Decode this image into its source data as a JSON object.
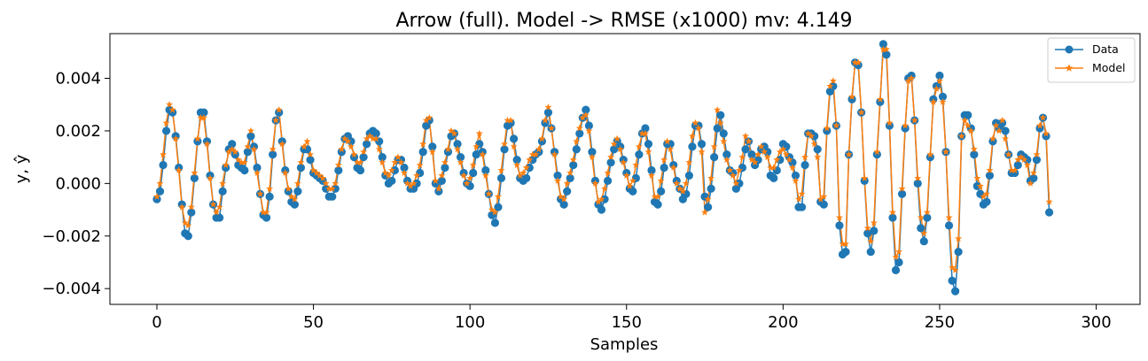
{
  "chart_data": {
    "type": "line",
    "title": "Arrow (full). Model -> RMSE (x1000) mv: 4.149",
    "xlabel": "Samples",
    "ylabel": "y, ŷ",
    "xlim": [
      -15,
      314
    ],
    "ylim": [
      -0.0046,
      0.0057
    ],
    "xticks": [
      0,
      50,
      100,
      150,
      200,
      250,
      300
    ],
    "xtick_labels": [
      "0",
      "50",
      "100",
      "150",
      "200",
      "250",
      "300"
    ],
    "yticks": [
      -0.004,
      -0.002,
      0.0,
      0.002,
      0.004
    ],
    "ytick_labels": [
      "−0.004",
      "−0.002",
      "0.000",
      "0.002",
      "0.004"
    ],
    "grid": false,
    "legend_position": "top-right",
    "series": [
      {
        "name": "Data",
        "color": "#1f77b4",
        "marker": "circle",
        "values": [
          -0.0006,
          -0.0003,
          0.0007,
          0.002,
          0.0028,
          0.0027,
          0.0018,
          0.0006,
          -0.0008,
          -0.0019,
          -0.002,
          -0.0011,
          0.0002,
          0.0016,
          0.0027,
          0.0027,
          0.0016,
          0.0003,
          -0.0008,
          -0.0013,
          -0.0013,
          -0.0003,
          0.0006,
          0.0013,
          0.0015,
          0.0011,
          0.0007,
          0.0006,
          0.0005,
          0.0012,
          0.0018,
          0.0014,
          0.0006,
          -0.0004,
          -0.0012,
          -0.0013,
          -0.0005,
          0.0011,
          0.0024,
          0.0027,
          0.0016,
          0.0005,
          -0.0003,
          -0.0007,
          -0.0008,
          -0.0003,
          0.0006,
          0.0013,
          0.0013,
          0.0009,
          0.0004,
          0.0003,
          0.0002,
          0.0001,
          -0.0002,
          -0.0005,
          -0.0005,
          -0.0002,
          0.0005,
          0.0012,
          0.0017,
          0.0018,
          0.0016,
          0.001,
          0.0006,
          0.0005,
          0.001,
          0.0015,
          0.0019,
          0.002,
          0.0019,
          0.0016,
          0.001,
          0.0003,
          0.0,
          0.0001,
          0.0005,
          0.0009,
          0.0009,
          0.0006,
          0.0001,
          -0.0002,
          -0.0002,
          0.0,
          0.0004,
          0.0012,
          0.0022,
          0.0024,
          0.0014,
          0.0,
          -0.0003,
          0.0001,
          0.0006,
          0.0012,
          0.0018,
          0.0019,
          0.0015,
          0.001,
          0.0004,
          0.0,
          -0.0001,
          0.0004,
          0.0011,
          0.0015,
          0.0012,
          0.0005,
          -0.0004,
          -0.0012,
          -0.0015,
          -0.0009,
          0.0002,
          0.0013,
          0.0022,
          0.0023,
          0.0017,
          0.0009,
          0.0002,
          0.0001,
          0.0002,
          0.0006,
          0.0009,
          0.0011,
          0.0012,
          0.0016,
          0.0023,
          0.0027,
          0.0021,
          0.0012,
          0.0003,
          -0.0006,
          -0.0008,
          -0.0003,
          0.0002,
          0.0007,
          0.0013,
          0.0019,
          0.0025,
          0.0028,
          0.0022,
          0.0012,
          0.0001,
          -0.0008,
          -0.001,
          -0.0006,
          0.0001,
          0.0008,
          0.0013,
          0.0016,
          0.0014,
          0.0009,
          0.0004,
          -0.0002,
          -0.0003,
          0.0002,
          0.0011,
          0.0019,
          0.0021,
          0.0015,
          0.0005,
          -0.0007,
          -0.0008,
          -0.0003,
          0.0006,
          0.0015,
          0.0015,
          0.0007,
          0.0001,
          -0.0002,
          -0.0006,
          -0.0004,
          0.0003,
          0.0014,
          0.0022,
          0.0022,
          0.0015,
          -0.0005,
          -0.0009,
          -0.0002,
          0.001,
          0.0021,
          0.0026,
          0.0019,
          0.0011,
          0.0005,
          0.0004,
          -0.0002,
          0.0,
          0.0006,
          0.0013,
          0.0016,
          0.0011,
          0.0007,
          0.0009,
          0.0013,
          0.0014,
          0.0012,
          0.0003,
          0.0002,
          0.0005,
          0.0009,
          0.0015,
          0.0014,
          0.001,
          0.0008,
          0.0003,
          -0.0009,
          -0.0009,
          0.0007,
          0.0019,
          0.0019,
          0.0018,
          0.0013,
          -0.0007,
          -0.0008,
          0.002,
          0.0035,
          0.0037,
          0.0022,
          -0.0016,
          -0.0027,
          -0.0026,
          0.0011,
          0.0032,
          0.0046,
          0.0045,
          0.0027,
          0.0001,
          -0.0019,
          -0.0026,
          -0.0018,
          0.0011,
          0.0031,
          0.0053,
          0.0049,
          0.0022,
          -0.0013,
          -0.0033,
          -0.003,
          -0.0004,
          0.0021,
          0.004,
          0.0041,
          0.0024,
          0.0,
          -0.0017,
          -0.0022,
          -0.0013,
          0.001,
          0.0032,
          0.0037,
          0.0041,
          0.0033,
          0.0012,
          -0.0016,
          -0.0037,
          -0.0041,
          -0.0026,
          0.0018,
          0.0026,
          0.0026,
          0.0021,
          0.0011,
          -0.0001,
          -0.0004,
          -0.0008,
          -0.0007,
          0.0003,
          0.0016,
          0.0023,
          0.0021,
          0.0023,
          0.002,
          0.0011,
          0.0004,
          0.0004,
          0.0007,
          0.0011,
          0.001,
          0.0009,
          0.0001,
          0.0002,
          0.0009,
          0.0021,
          0.0025,
          0.0018,
          -0.0011
        ]
      },
      {
        "name": "Model",
        "color": "#ff7f0e",
        "marker": "star",
        "values": [
          -0.0005,
          0.0,
          0.0011,
          0.0023,
          0.003,
          0.0028,
          0.0017,
          0.0005,
          -0.0009,
          -0.0015,
          -0.0016,
          -0.0009,
          0.0004,
          0.0017,
          0.0025,
          0.0025,
          0.0015,
          0.0002,
          -0.0008,
          -0.0011,
          -0.0009,
          0.0,
          0.0007,
          0.0012,
          0.0013,
          0.0012,
          0.0009,
          0.0008,
          0.0008,
          0.0014,
          0.002,
          0.0013,
          0.0004,
          -0.0004,
          -0.0011,
          -0.0011,
          -0.0002,
          0.0013,
          0.0024,
          0.0028,
          0.0015,
          0.0004,
          -0.0002,
          -0.0005,
          -0.0006,
          0.0,
          0.0008,
          0.0014,
          0.0016,
          0.0011,
          0.0005,
          0.0004,
          0.0003,
          0.0002,
          0.0,
          -0.0002,
          -0.0002,
          0.0,
          0.0007,
          0.0013,
          0.0017,
          0.0016,
          0.0014,
          0.0011,
          0.0008,
          0.0008,
          0.0012,
          0.0017,
          0.0018,
          0.0017,
          0.0017,
          0.0013,
          0.0008,
          0.0004,
          0.0003,
          0.0005,
          0.0008,
          0.001,
          0.0008,
          0.0004,
          0.0,
          -0.0001,
          0.0,
          0.0003,
          0.0007,
          0.0015,
          0.0024,
          0.0025,
          0.0012,
          0.0001,
          -0.0002,
          0.0003,
          0.0008,
          0.0013,
          0.002,
          0.0019,
          0.0013,
          0.0008,
          0.0003,
          0.0,
          0.0002,
          0.0007,
          0.0014,
          0.0019,
          0.0011,
          0.0003,
          -0.0004,
          -0.001,
          -0.0011,
          -0.0005,
          0.0005,
          0.0015,
          0.0024,
          0.0024,
          0.0014,
          0.0007,
          0.0003,
          0.0004,
          0.0006,
          0.0009,
          0.0011,
          0.0011,
          0.0013,
          0.0017,
          0.0024,
          0.0029,
          0.0021,
          0.0011,
          0.0001,
          -0.0005,
          -0.0006,
          0.0,
          0.0004,
          0.0009,
          0.0016,
          0.0021,
          0.0025,
          0.0026,
          0.002,
          0.001,
          0.0,
          -0.0007,
          -0.0006,
          -0.0002,
          0.0004,
          0.001,
          0.0015,
          0.0017,
          0.0013,
          0.0008,
          0.0003,
          -0.0001,
          0.0001,
          0.0007,
          0.0014,
          0.0019,
          0.0019,
          0.0012,
          0.0003,
          -0.0005,
          -0.0005,
          0.0001,
          0.0009,
          0.0016,
          0.0013,
          0.0006,
          0.0,
          -0.0002,
          -0.0003,
          0.0,
          0.0008,
          0.0018,
          0.0023,
          0.0021,
          0.0012,
          -0.0011,
          -0.0006,
          0.0002,
          0.0014,
          0.0028,
          0.0023,
          0.0016,
          0.0009,
          0.0005,
          0.0003,
          0.0,
          0.0005,
          0.001,
          0.0018,
          0.0016,
          0.0009,
          0.0008,
          0.0011,
          0.0014,
          0.0012,
          0.001,
          0.0006,
          0.0006,
          0.0009,
          0.0012,
          0.0013,
          0.0011,
          0.0009,
          0.0006,
          0.0001,
          -0.0006,
          -0.0004,
          0.001,
          0.0019,
          0.0018,
          0.0015,
          0.001,
          -0.0006,
          -0.0005,
          0.0021,
          0.0037,
          0.0039,
          0.0022,
          -0.0013,
          -0.0023,
          -0.0023,
          0.0011,
          0.0033,
          0.0046,
          0.0046,
          0.0027,
          0.0002,
          -0.0017,
          -0.0022,
          -0.0015,
          0.0012,
          0.0032,
          0.0051,
          0.0051,
          0.0023,
          -0.0011,
          -0.0028,
          -0.0026,
          -0.0002,
          0.0022,
          0.0039,
          0.004,
          0.0024,
          0.0002,
          -0.0013,
          -0.0019,
          -0.0011,
          0.0011,
          0.0031,
          0.0036,
          0.0039,
          0.0031,
          0.0012,
          -0.0013,
          -0.0032,
          -0.0033,
          -0.0021,
          0.0018,
          0.0024,
          0.0022,
          0.002,
          0.0013,
          0.0002,
          -0.0001,
          -0.0005,
          -0.0004,
          0.0005,
          0.0017,
          0.0022,
          0.002,
          0.0024,
          0.0017,
          0.0011,
          0.0005,
          0.0005,
          0.0009,
          0.001,
          0.0009,
          0.0007,
          0.0,
          0.0004,
          0.0011,
          0.0022,
          0.0025,
          0.0019,
          -0.0007
        ]
      }
    ]
  }
}
